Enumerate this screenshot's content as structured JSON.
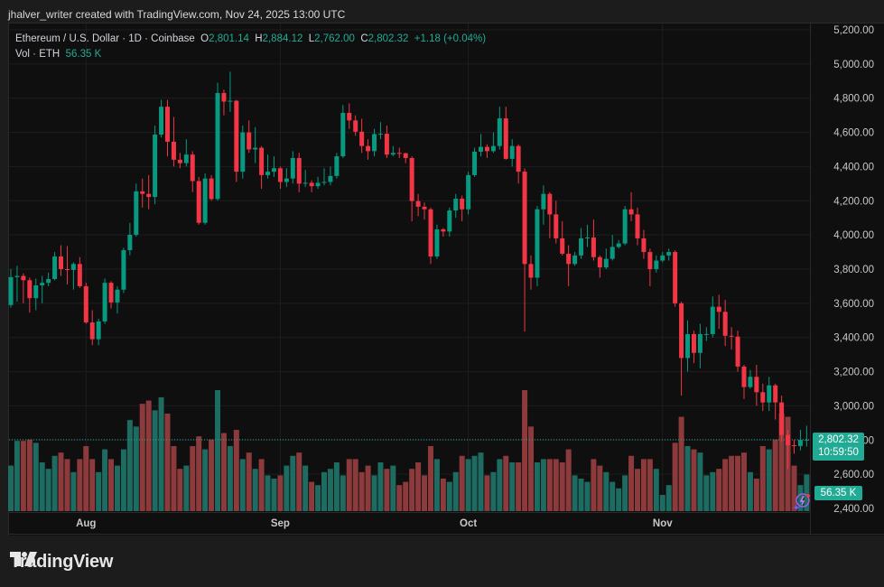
{
  "credit": "jhalver_writer created with TradingView.com, Nov 24, 2025 13:00 UTC",
  "legend": {
    "symbol": "Ethereum / U.S. Dollar · 1D · Coinbase",
    "o_label": "O",
    "o": "2,801.14",
    "h_label": "H",
    "h": "2,884.12",
    "l_label": "L",
    "l": "2,762.00",
    "c_label": "C",
    "c": "2,802.32",
    "change": "+1.18 (+0.04%)",
    "vol_label": "Vol · ETH",
    "vol": "56.35 K"
  },
  "badges": {
    "price": "2,802.32",
    "countdown": "10:59:50",
    "volume": "56.35 K"
  },
  "logo": {
    "text": "TradingView"
  },
  "colors": {
    "up": "#089981",
    "down": "#f23645",
    "up_volume": "#1d6b61",
    "down_volume": "#8c3a3c",
    "background": "#0f0f0f",
    "badge": "#22ab94"
  },
  "chart_data": {
    "type": "candlestick",
    "title": "Ethereum / U.S. Dollar · 1D · Coinbase",
    "ylim": [
      2400,
      5200
    ],
    "y_ticks": [
      "5,200.00",
      "5,000.00",
      "4,800.00",
      "4,600.00",
      "4,400.00",
      "4,200.00",
      "4,000.00",
      "3,800.00",
      "3,600.00",
      "3,400.00",
      "3,200.00",
      "3,000.00",
      "2,800.00",
      "2,600.00",
      "2,400.00"
    ],
    "y_tick_values": [
      5200,
      5000,
      4800,
      4600,
      4400,
      4200,
      4000,
      3800,
      3600,
      3400,
      3200,
      3000,
      2800,
      2600,
      2400
    ],
    "x_ticks": [
      {
        "label": "Aug",
        "date": "2025-08-01"
      },
      {
        "label": "Sep",
        "date": "2025-09-01"
      },
      {
        "label": "Oct",
        "date": "2025-10-01"
      },
      {
        "label": "Nov",
        "date": "2025-11-01"
      }
    ],
    "grid": true,
    "volume_unit": "K",
    "fields": [
      "date",
      "open",
      "high",
      "low",
      "close",
      "volume_k"
    ],
    "candles": [
      [
        "2025-07-20",
        3590,
        3800,
        3575,
        3753,
        70
      ],
      [
        "2025-07-21",
        3753,
        3820,
        3610,
        3760,
        108
      ],
      [
        "2025-07-22",
        3760,
        3775,
        3600,
        3735,
        108
      ],
      [
        "2025-07-23",
        3735,
        3750,
        3545,
        3630,
        110
      ],
      [
        "2025-07-24",
        3630,
        3745,
        3560,
        3705,
        105
      ],
      [
        "2025-07-25",
        3705,
        3760,
        3600,
        3720,
        75
      ],
      [
        "2025-07-26",
        3720,
        3780,
        3700,
        3742,
        65
      ],
      [
        "2025-07-27",
        3742,
        3900,
        3735,
        3874,
        85
      ],
      [
        "2025-07-28",
        3874,
        3940,
        3760,
        3800,
        90
      ],
      [
        "2025-07-29",
        3800,
        3935,
        3710,
        3795,
        80
      ],
      [
        "2025-07-30",
        3795,
        3840,
        3680,
        3830,
        60
      ],
      [
        "2025-07-31",
        3830,
        3870,
        3690,
        3700,
        80
      ],
      [
        "2025-08-01",
        3700,
        3720,
        3480,
        3488,
        100
      ],
      [
        "2025-08-02",
        3488,
        3560,
        3355,
        3390,
        80
      ],
      [
        "2025-08-03",
        3390,
        3510,
        3355,
        3494,
        60
      ],
      [
        "2025-08-04",
        3494,
        3745,
        3480,
        3720,
        95
      ],
      [
        "2025-08-05",
        3720,
        3730,
        3570,
        3605,
        80
      ],
      [
        "2025-08-06",
        3605,
        3700,
        3540,
        3680,
        70
      ],
      [
        "2025-08-07",
        3680,
        3925,
        3660,
        3911,
        95
      ],
      [
        "2025-08-08",
        3911,
        4070,
        3880,
        4001,
        140
      ],
      [
        "2025-08-09",
        4001,
        4300,
        3990,
        4255,
        130
      ],
      [
        "2025-08-10",
        4255,
        4330,
        4160,
        4240,
        165
      ],
      [
        "2025-08-11",
        4240,
        4350,
        4150,
        4222,
        170
      ],
      [
        "2025-08-12",
        4222,
        4640,
        4180,
        4587,
        155
      ],
      [
        "2025-08-13",
        4587,
        4790,
        4570,
        4750,
        175
      ],
      [
        "2025-08-14",
        4750,
        4790,
        4460,
        4545,
        150
      ],
      [
        "2025-08-15",
        4545,
        4690,
        4400,
        4440,
        100
      ],
      [
        "2025-08-16",
        4440,
        4480,
        4390,
        4420,
        65
      ],
      [
        "2025-08-17",
        4420,
        4560,
        4400,
        4470,
        70
      ],
      [
        "2025-08-18",
        4470,
        4490,
        4250,
        4315,
        100
      ],
      [
        "2025-08-19",
        4315,
        4340,
        4060,
        4071,
        115
      ],
      [
        "2025-08-20",
        4071,
        4360,
        4060,
        4330,
        95
      ],
      [
        "2025-08-21",
        4330,
        4350,
        4200,
        4210,
        110
      ],
      [
        "2025-08-22",
        4210,
        4890,
        4200,
        4830,
        186
      ],
      [
        "2025-08-23",
        4830,
        4850,
        4700,
        4780,
        120
      ],
      [
        "2025-08-24",
        4780,
        4955,
        4720,
        4785,
        100
      ],
      [
        "2025-08-25",
        4785,
        4790,
        4310,
        4370,
        125
      ],
      [
        "2025-08-26",
        4370,
        4640,
        4330,
        4600,
        80
      ],
      [
        "2025-08-27",
        4600,
        4670,
        4480,
        4500,
        90
      ],
      [
        "2025-08-28",
        4500,
        4630,
        4420,
        4510,
        65
      ],
      [
        "2025-08-29",
        4510,
        4520,
        4270,
        4350,
        80
      ],
      [
        "2025-08-30",
        4350,
        4470,
        4330,
        4370,
        55
      ],
      [
        "2025-08-31",
        4370,
        4460,
        4340,
        4390,
        50
      ],
      [
        "2025-09-01",
        4390,
        4400,
        4270,
        4310,
        55
      ],
      [
        "2025-09-02",
        4310,
        4390,
        4280,
        4330,
        70
      ],
      [
        "2025-09-03",
        4330,
        4490,
        4300,
        4450,
        85
      ],
      [
        "2025-09-04",
        4450,
        4480,
        4250,
        4300,
        90
      ],
      [
        "2025-09-05",
        4300,
        4380,
        4280,
        4305,
        70
      ],
      [
        "2025-09-06",
        4305,
        4320,
        4250,
        4285,
        45
      ],
      [
        "2025-09-07",
        4285,
        4340,
        4270,
        4305,
        40
      ],
      [
        "2025-09-08",
        4305,
        4390,
        4290,
        4310,
        60
      ],
      [
        "2025-09-09",
        4310,
        4400,
        4290,
        4345,
        65
      ],
      [
        "2025-09-10",
        4345,
        4480,
        4330,
        4460,
        75
      ],
      [
        "2025-09-11",
        4460,
        4760,
        4450,
        4714,
        55
      ],
      [
        "2025-09-12",
        4714,
        4770,
        4620,
        4670,
        80
      ],
      [
        "2025-09-13",
        4670,
        4700,
        4580,
        4604,
        80
      ],
      [
        "2025-09-14",
        4604,
        4680,
        4480,
        4520,
        60
      ],
      [
        "2025-09-15",
        4520,
        4560,
        4440,
        4490,
        70
      ],
      [
        "2025-09-16",
        4490,
        4620,
        4460,
        4590,
        55
      ],
      [
        "2025-09-17",
        4590,
        4660,
        4560,
        4592,
        75
      ],
      [
        "2025-09-18",
        4592,
        4640,
        4450,
        4470,
        65
      ],
      [
        "2025-09-19",
        4470,
        4520,
        4460,
        4480,
        70
      ],
      [
        "2025-09-20",
        4480,
        4510,
        4450,
        4478,
        40
      ],
      [
        "2025-09-21",
        4478,
        4480,
        4420,
        4450,
        45
      ],
      [
        "2025-09-22",
        4450,
        4460,
        4080,
        4198,
        65
      ],
      [
        "2025-09-23",
        4198,
        4240,
        4110,
        4165,
        75
      ],
      [
        "2025-09-24",
        4165,
        4190,
        4090,
        4150,
        55
      ],
      [
        "2025-09-25",
        4150,
        4160,
        3830,
        3874,
        100
      ],
      [
        "2025-09-26",
        3874,
        4060,
        3860,
        4033,
        80
      ],
      [
        "2025-09-27",
        4033,
        4040,
        3990,
        4020,
        50
      ],
      [
        "2025-09-28",
        4020,
        4160,
        3990,
        4143,
        45
      ],
      [
        "2025-09-29",
        4143,
        4240,
        4100,
        4212,
        60
      ],
      [
        "2025-09-30",
        4212,
        4230,
        4080,
        4150,
        85
      ],
      [
        "2025-10-01",
        4150,
        4370,
        4120,
        4350,
        80
      ],
      [
        "2025-10-02",
        4350,
        4510,
        4340,
        4487,
        85
      ],
      [
        "2025-10-03",
        4487,
        4590,
        4460,
        4515,
        90
      ],
      [
        "2025-10-04",
        4515,
        4530,
        4450,
        4490,
        55
      ],
      [
        "2025-10-05",
        4490,
        4600,
        4480,
        4520,
        60
      ],
      [
        "2025-10-06",
        4520,
        4750,
        4500,
        4682,
        80
      ],
      [
        "2025-10-07",
        4682,
        4750,
        4440,
        4445,
        85
      ],
      [
        "2025-10-08",
        4445,
        4560,
        4400,
        4520,
        75
      ],
      [
        "2025-10-09",
        4520,
        4530,
        4300,
        4370,
        75
      ],
      [
        "2025-10-10",
        4370,
        4390,
        3435,
        3830,
        186
      ],
      [
        "2025-10-11",
        3830,
        3880,
        3680,
        3750,
        130
      ],
      [
        "2025-10-12",
        3750,
        4170,
        3700,
        4150,
        75
      ],
      [
        "2025-10-13",
        4150,
        4290,
        4060,
        4240,
        80
      ],
      [
        "2025-10-14",
        4240,
        4250,
        3980,
        4120,
        80
      ],
      [
        "2025-10-15",
        4120,
        4200,
        3950,
        3980,
        80
      ],
      [
        "2025-10-16",
        3980,
        4080,
        3880,
        3890,
        75
      ],
      [
        "2025-10-17",
        3890,
        3940,
        3700,
        3830,
        95
      ],
      [
        "2025-10-18",
        3830,
        3900,
        3820,
        3880,
        55
      ],
      [
        "2025-10-19",
        3880,
        4040,
        3860,
        3980,
        50
      ],
      [
        "2025-10-20",
        3980,
        4060,
        3930,
        3985,
        45
      ],
      [
        "2025-10-21",
        3985,
        4090,
        3850,
        3870,
        80
      ],
      [
        "2025-10-22",
        3870,
        3880,
        3750,
        3810,
        70
      ],
      [
        "2025-10-23",
        3810,
        3920,
        3800,
        3860,
        60
      ],
      [
        "2025-10-24",
        3860,
        4000,
        3850,
        3930,
        45
      ],
      [
        "2025-10-25",
        3930,
        3970,
        3920,
        3950,
        35
      ],
      [
        "2025-10-26",
        3950,
        4170,
        3940,
        4150,
        55
      ],
      [
        "2025-10-27",
        4150,
        4250,
        4080,
        4120,
        85
      ],
      [
        "2025-10-28",
        4120,
        4160,
        3940,
        3980,
        65
      ],
      [
        "2025-10-29",
        3980,
        4030,
        3860,
        3900,
        80
      ],
      [
        "2025-10-30",
        3900,
        3920,
        3700,
        3800,
        80
      ],
      [
        "2025-10-31",
        3800,
        3880,
        3780,
        3850,
        65
      ],
      [
        "2025-11-01",
        3850,
        3900,
        3840,
        3880,
        25
      ],
      [
        "2025-11-02",
        3880,
        3920,
        3850,
        3900,
        40
      ],
      [
        "2025-11-03",
        3900,
        3910,
        3580,
        3600,
        105
      ],
      [
        "2025-11-04",
        3600,
        3610,
        3060,
        3280,
        145
      ],
      [
        "2025-11-05",
        3280,
        3500,
        3200,
        3420,
        100
      ],
      [
        "2025-11-06",
        3420,
        3440,
        3250,
        3310,
        95
      ],
      [
        "2025-11-07",
        3310,
        3480,
        3220,
        3420,
        90
      ],
      [
        "2025-11-08",
        3420,
        3460,
        3380,
        3420,
        55
      ],
      [
        "2025-11-09",
        3420,
        3640,
        3400,
        3580,
        60
      ],
      [
        "2025-11-10",
        3580,
        3650,
        3450,
        3550,
        65
      ],
      [
        "2025-11-11",
        3550,
        3620,
        3350,
        3410,
        80
      ],
      [
        "2025-11-12",
        3410,
        3460,
        3330,
        3405,
        85
      ],
      [
        "2025-11-13",
        3405,
        3440,
        3200,
        3230,
        85
      ],
      [
        "2025-11-14",
        3230,
        3240,
        3040,
        3110,
        90
      ],
      [
        "2025-11-15",
        3110,
        3210,
        3100,
        3170,
        60
      ],
      [
        "2025-11-16",
        3170,
        3240,
        3000,
        3080,
        50
      ],
      [
        "2025-11-17",
        3080,
        3130,
        2970,
        3020,
        100
      ],
      [
        "2025-11-18",
        3020,
        3170,
        2970,
        3120,
        95
      ],
      [
        "2025-11-19",
        3120,
        3130,
        2920,
        3020,
        110
      ],
      [
        "2025-11-20",
        3020,
        3060,
        2790,
        2830,
        150
      ],
      [
        "2025-11-21",
        2830,
        2860,
        2630,
        2770,
        145
      ],
      [
        "2025-11-22",
        2770,
        2800,
        2720,
        2765,
        70
      ],
      [
        "2025-11-23",
        2765,
        2860,
        2740,
        2801,
        40
      ],
      [
        "2025-11-24",
        2801.14,
        2884.12,
        2762,
        2802.32,
        56.35
      ]
    ]
  }
}
